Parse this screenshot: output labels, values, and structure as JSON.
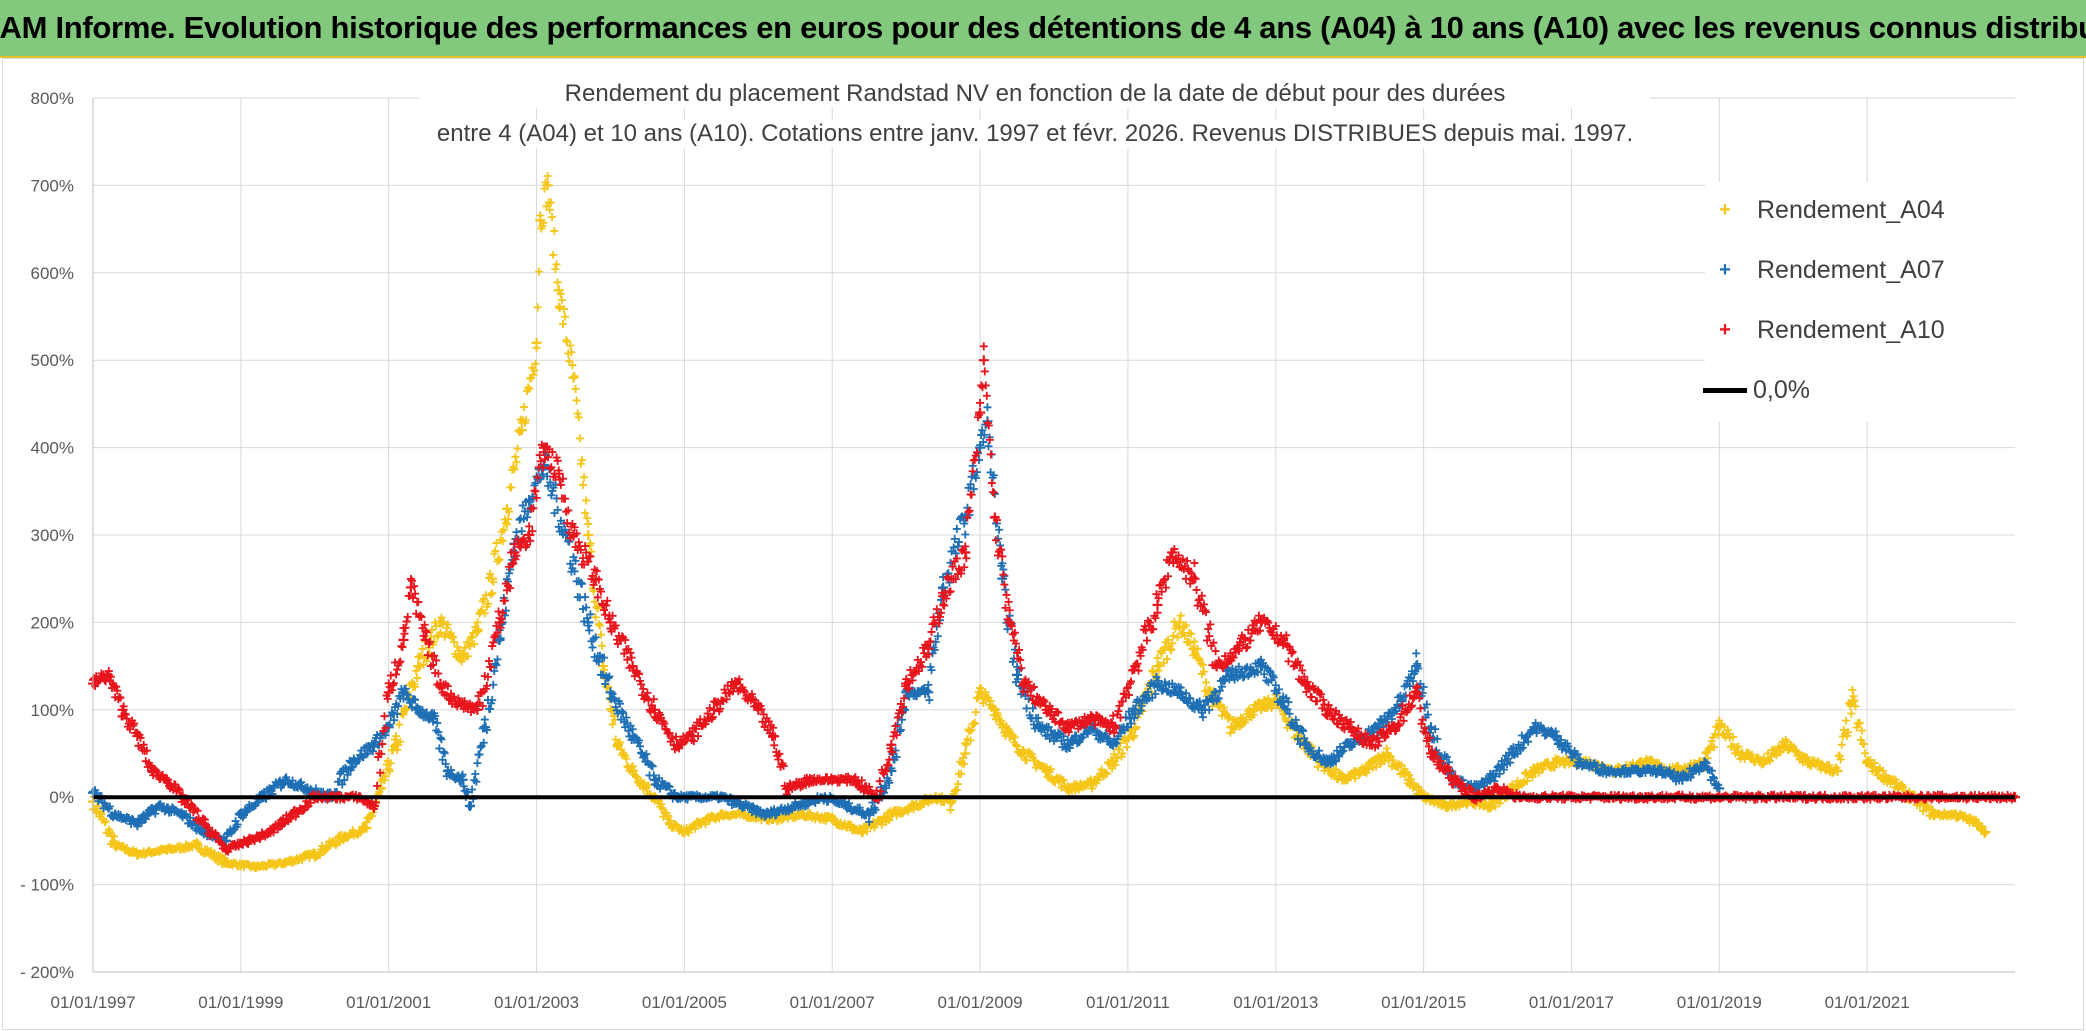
{
  "banner": {
    "title": "ADAM Informe. Evolution historique des performances en euros pour des détentions de 4 ans (A04) à 10 ans (A10) avec les revenus connus distribués"
  },
  "chart_data": {
    "type": "scatter",
    "title_line1": "Rendement du placement Randstad NV en fonction de la date de début pour des durées",
    "title_line2": "entre 4 (A04) et 10 ans (A10). Cotations entre janv. 1997 et févr. 2026. Revenus DISTRIBUES depuis mai. 1997.",
    "xlabel": "",
    "ylabel": "",
    "x_range": [
      1997.0,
      2023.0
    ],
    "ylim": [
      -200,
      800
    ],
    "y_ticks": [
      -200,
      -100,
      0,
      100,
      200,
      300,
      400,
      500,
      600,
      700,
      800
    ],
    "y_tick_labels": [
      "- 200%",
      "- 100%",
      "0%",
      "100%",
      "200%",
      "300%",
      "400%",
      "500%",
      "600%",
      "700%",
      "800%"
    ],
    "x_ticks": [
      1997,
      1999,
      2001,
      2003,
      2005,
      2007,
      2009,
      2011,
      2013,
      2015,
      2017,
      2019,
      2021
    ],
    "x_tick_labels": [
      "01/01/1997",
      "01/01/1999",
      "01/01/2001",
      "01/01/2003",
      "01/01/2005",
      "01/01/2007",
      "01/01/2009",
      "01/01/2011",
      "01/01/2013",
      "01/01/2015",
      "01/01/2017",
      "01/01/2019",
      "01/01/2021"
    ],
    "grid": true,
    "legend_position": "top-right",
    "series": [
      {
        "name": "Rendement_A04",
        "color": "#f5c518",
        "marker": "+",
        "points": [
          [
            1997.0,
            -5
          ],
          [
            1997.3,
            -55
          ],
          [
            1997.6,
            -65
          ],
          [
            1998.0,
            -60
          ],
          [
            1998.4,
            -55
          ],
          [
            1998.8,
            -75
          ],
          [
            1999.2,
            -80
          ],
          [
            1999.6,
            -75
          ],
          [
            2000.0,
            -65
          ],
          [
            2000.4,
            -45
          ],
          [
            2000.7,
            -35
          ],
          [
            2000.9,
            10
          ],
          [
            2001.1,
            60
          ],
          [
            2001.4,
            150
          ],
          [
            2001.7,
            200
          ],
          [
            2002.0,
            160
          ],
          [
            2002.2,
            190
          ],
          [
            2002.4,
            250
          ],
          [
            2002.6,
            330
          ],
          [
            2002.8,
            420
          ],
          [
            2003.0,
            520
          ],
          [
            2003.05,
            660
          ],
          [
            2003.15,
            700
          ],
          [
            2003.3,
            580
          ],
          [
            2003.5,
            480
          ],
          [
            2003.7,
            300
          ],
          [
            2003.9,
            150
          ],
          [
            2004.1,
            60
          ],
          [
            2004.3,
            30
          ],
          [
            2004.6,
            0
          ],
          [
            2004.8,
            -30
          ],
          [
            2005.0,
            -40
          ],
          [
            2005.2,
            -30
          ],
          [
            2005.5,
            -20
          ],
          [
            2005.8,
            -20
          ],
          [
            2006.2,
            -25
          ],
          [
            2006.6,
            -20
          ],
          [
            2007.0,
            -25
          ],
          [
            2007.4,
            -40
          ],
          [
            2007.8,
            -20
          ],
          [
            2008.1,
            -10
          ],
          [
            2008.4,
            0
          ],
          [
            2008.6,
            -5
          ],
          [
            2008.8,
            50
          ],
          [
            2009.0,
            120
          ],
          [
            2009.2,
            100
          ],
          [
            2009.4,
            70
          ],
          [
            2009.6,
            50
          ],
          [
            2009.9,
            30
          ],
          [
            2010.2,
            10
          ],
          [
            2010.5,
            15
          ],
          [
            2010.8,
            40
          ],
          [
            2011.1,
            80
          ],
          [
            2011.4,
            150
          ],
          [
            2011.7,
            200
          ],
          [
            2011.9,
            170
          ],
          [
            2012.1,
            120
          ],
          [
            2012.4,
            80
          ],
          [
            2012.7,
            100
          ],
          [
            2013.0,
            110
          ],
          [
            2013.3,
            70
          ],
          [
            2013.6,
            40
          ],
          [
            2013.9,
            20
          ],
          [
            2014.2,
            30
          ],
          [
            2014.5,
            50
          ],
          [
            2014.8,
            20
          ],
          [
            2015.0,
            0
          ],
          [
            2015.3,
            -10
          ],
          [
            2015.6,
            -5
          ],
          [
            2015.9,
            -10
          ],
          [
            2016.2,
            10
          ],
          [
            2016.5,
            30
          ],
          [
            2016.8,
            40
          ],
          [
            2017.2,
            40
          ],
          [
            2017.6,
            30
          ],
          [
            2018.0,
            40
          ],
          [
            2018.4,
            30
          ],
          [
            2018.8,
            40
          ],
          [
            2019.0,
            80
          ],
          [
            2019.3,
            50
          ],
          [
            2019.6,
            40
          ],
          [
            2019.9,
            60
          ],
          [
            2020.2,
            40
          ],
          [
            2020.6,
            30
          ],
          [
            2020.8,
            110
          ],
          [
            2021.0,
            40
          ],
          [
            2021.3,
            20
          ],
          [
            2021.6,
            0
          ],
          [
            2021.9,
            -20
          ],
          [
            2022.2,
            -20
          ],
          [
            2022.5,
            -30
          ],
          [
            2022.6,
            -40
          ]
        ]
      },
      {
        "name": "Rendement_A07",
        "color": "#1f6fb5",
        "marker": "+",
        "points": [
          [
            1997.0,
            5
          ],
          [
            1997.3,
            -20
          ],
          [
            1997.6,
            -30
          ],
          [
            1997.9,
            -10
          ],
          [
            1998.2,
            -20
          ],
          [
            1998.5,
            -40
          ],
          [
            1998.8,
            -50
          ],
          [
            1999.0,
            -20
          ],
          [
            1999.3,
            0
          ],
          [
            1999.6,
            20
          ],
          [
            1999.9,
            10
          ],
          [
            2000.2,
            0
          ],
          [
            2000.5,
            40
          ],
          [
            2000.8,
            60
          ],
          [
            2001.0,
            80
          ],
          [
            2001.2,
            120
          ],
          [
            2001.4,
            100
          ],
          [
            2001.6,
            90
          ],
          [
            2001.8,
            30
          ],
          [
            2002.0,
            20
          ],
          [
            2002.1,
            -10
          ],
          [
            2002.3,
            80
          ],
          [
            2002.5,
            180
          ],
          [
            2002.7,
            290
          ],
          [
            2002.9,
            340
          ],
          [
            2003.1,
            380
          ],
          [
            2003.4,
            300
          ],
          [
            2003.7,
            200
          ],
          [
            2004.0,
            120
          ],
          [
            2004.3,
            70
          ],
          [
            2004.6,
            20
          ],
          [
            2004.9,
            0
          ],
          [
            2005.2,
            0
          ],
          [
            2005.5,
            0
          ],
          [
            2005.8,
            -10
          ],
          [
            2006.1,
            -20
          ],
          [
            2006.5,
            -10
          ],
          [
            2006.9,
            0
          ],
          [
            2007.2,
            -10
          ],
          [
            2007.5,
            -20
          ],
          [
            2007.8,
            30
          ],
          [
            2008.0,
            120
          ],
          [
            2008.3,
            120
          ],
          [
            2008.5,
            240
          ],
          [
            2008.8,
            320
          ],
          [
            2009.0,
            400
          ],
          [
            2009.1,
            430
          ],
          [
            2009.3,
            250
          ],
          [
            2009.5,
            140
          ],
          [
            2009.8,
            80
          ],
          [
            2010.2,
            60
          ],
          [
            2010.5,
            80
          ],
          [
            2010.8,
            60
          ],
          [
            2011.1,
            100
          ],
          [
            2011.4,
            130
          ],
          [
            2011.7,
            120
          ],
          [
            2012.0,
            100
          ],
          [
            2012.4,
            140
          ],
          [
            2012.8,
            150
          ],
          [
            2013.1,
            110
          ],
          [
            2013.4,
            60
          ],
          [
            2013.7,
            40
          ],
          [
            2014.0,
            60
          ],
          [
            2014.4,
            80
          ],
          [
            2014.7,
            110
          ],
          [
            2014.9,
            150
          ],
          [
            2015.1,
            80
          ],
          [
            2015.4,
            20
          ],
          [
            2015.7,
            10
          ],
          [
            2015.9,
            20
          ],
          [
            2016.2,
            50
          ],
          [
            2016.5,
            80
          ],
          [
            2016.8,
            70
          ],
          [
            2017.1,
            40
          ],
          [
            2017.5,
            30
          ],
          [
            2017.9,
            30
          ],
          [
            2018.2,
            30
          ],
          [
            2018.5,
            20
          ],
          [
            2018.8,
            40
          ],
          [
            2019.0,
            10
          ]
        ]
      },
      {
        "name": "Rendement_A10",
        "color": "#e8141c",
        "marker": "+",
        "points": [
          [
            1997.0,
            130
          ],
          [
            1997.2,
            140
          ],
          [
            1997.4,
            100
          ],
          [
            1997.6,
            70
          ],
          [
            1997.8,
            30
          ],
          [
            1998.0,
            20
          ],
          [
            1998.2,
            0
          ],
          [
            1998.5,
            -30
          ],
          [
            1998.8,
            -60
          ],
          [
            1999.1,
            -50
          ],
          [
            1999.4,
            -40
          ],
          [
            1999.7,
            -20
          ],
          [
            2000.0,
            0
          ],
          [
            2000.3,
            0
          ],
          [
            2000.6,
            0
          ],
          [
            2000.8,
            -10
          ],
          [
            2001.0,
            120
          ],
          [
            2001.2,
            180
          ],
          [
            2001.3,
            240
          ],
          [
            2001.5,
            180
          ],
          [
            2001.7,
            130
          ],
          [
            2001.9,
            110
          ],
          [
            2002.2,
            100
          ],
          [
            2002.5,
            200
          ],
          [
            2002.7,
            280
          ],
          [
            2002.9,
            300
          ],
          [
            2003.1,
            400
          ],
          [
            2003.3,
            370
          ],
          [
            2003.5,
            300
          ],
          [
            2003.8,
            250
          ],
          [
            2004.0,
            200
          ],
          [
            2004.3,
            150
          ],
          [
            2004.6,
            100
          ],
          [
            2004.9,
            60
          ],
          [
            2005.1,
            70
          ],
          [
            2005.4,
            100
          ],
          [
            2005.7,
            130
          ],
          [
            2006.0,
            100
          ],
          [
            2006.2,
            70
          ],
          [
            2006.4,
            10
          ],
          [
            2006.7,
            20
          ],
          [
            2007.0,
            20
          ],
          [
            2007.3,
            20
          ],
          [
            2007.6,
            0
          ],
          [
            2007.8,
            60
          ],
          [
            2008.0,
            130
          ],
          [
            2008.3,
            170
          ],
          [
            2008.5,
            230
          ],
          [
            2008.8,
            280
          ],
          [
            2009.0,
            440
          ],
          [
            2009.05,
            500
          ],
          [
            2009.2,
            320
          ],
          [
            2009.4,
            200
          ],
          [
            2009.6,
            130
          ],
          [
            2009.9,
            100
          ],
          [
            2010.2,
            80
          ],
          [
            2010.5,
            90
          ],
          [
            2010.8,
            80
          ],
          [
            2011.1,
            150
          ],
          [
            2011.4,
            220
          ],
          [
            2011.6,
            280
          ],
          [
            2011.9,
            250
          ],
          [
            2012.2,
            150
          ],
          [
            2012.5,
            170
          ],
          [
            2012.8,
            200
          ],
          [
            2013.1,
            180
          ],
          [
            2013.4,
            130
          ],
          [
            2013.7,
            100
          ],
          [
            2014.0,
            80
          ],
          [
            2014.3,
            60
          ],
          [
            2014.6,
            80
          ],
          [
            2014.9,
            120
          ],
          [
            2015.1,
            50
          ],
          [
            2015.4,
            20
          ],
          [
            2015.7,
            0
          ],
          [
            2016.0,
            10
          ],
          [
            2016.3,
            0
          ],
          [
            2017.0,
            0
          ],
          [
            2018.0,
            0
          ],
          [
            2019.0,
            0
          ],
          [
            2020.0,
            0
          ],
          [
            2021.0,
            0
          ],
          [
            2022.0,
            0
          ],
          [
            2023.0,
            0
          ]
        ]
      },
      {
        "name": "0,0%",
        "color": "#000000",
        "type": "line",
        "points": [
          [
            1997.0,
            0
          ],
          [
            2023.0,
            0
          ]
        ]
      }
    ]
  }
}
